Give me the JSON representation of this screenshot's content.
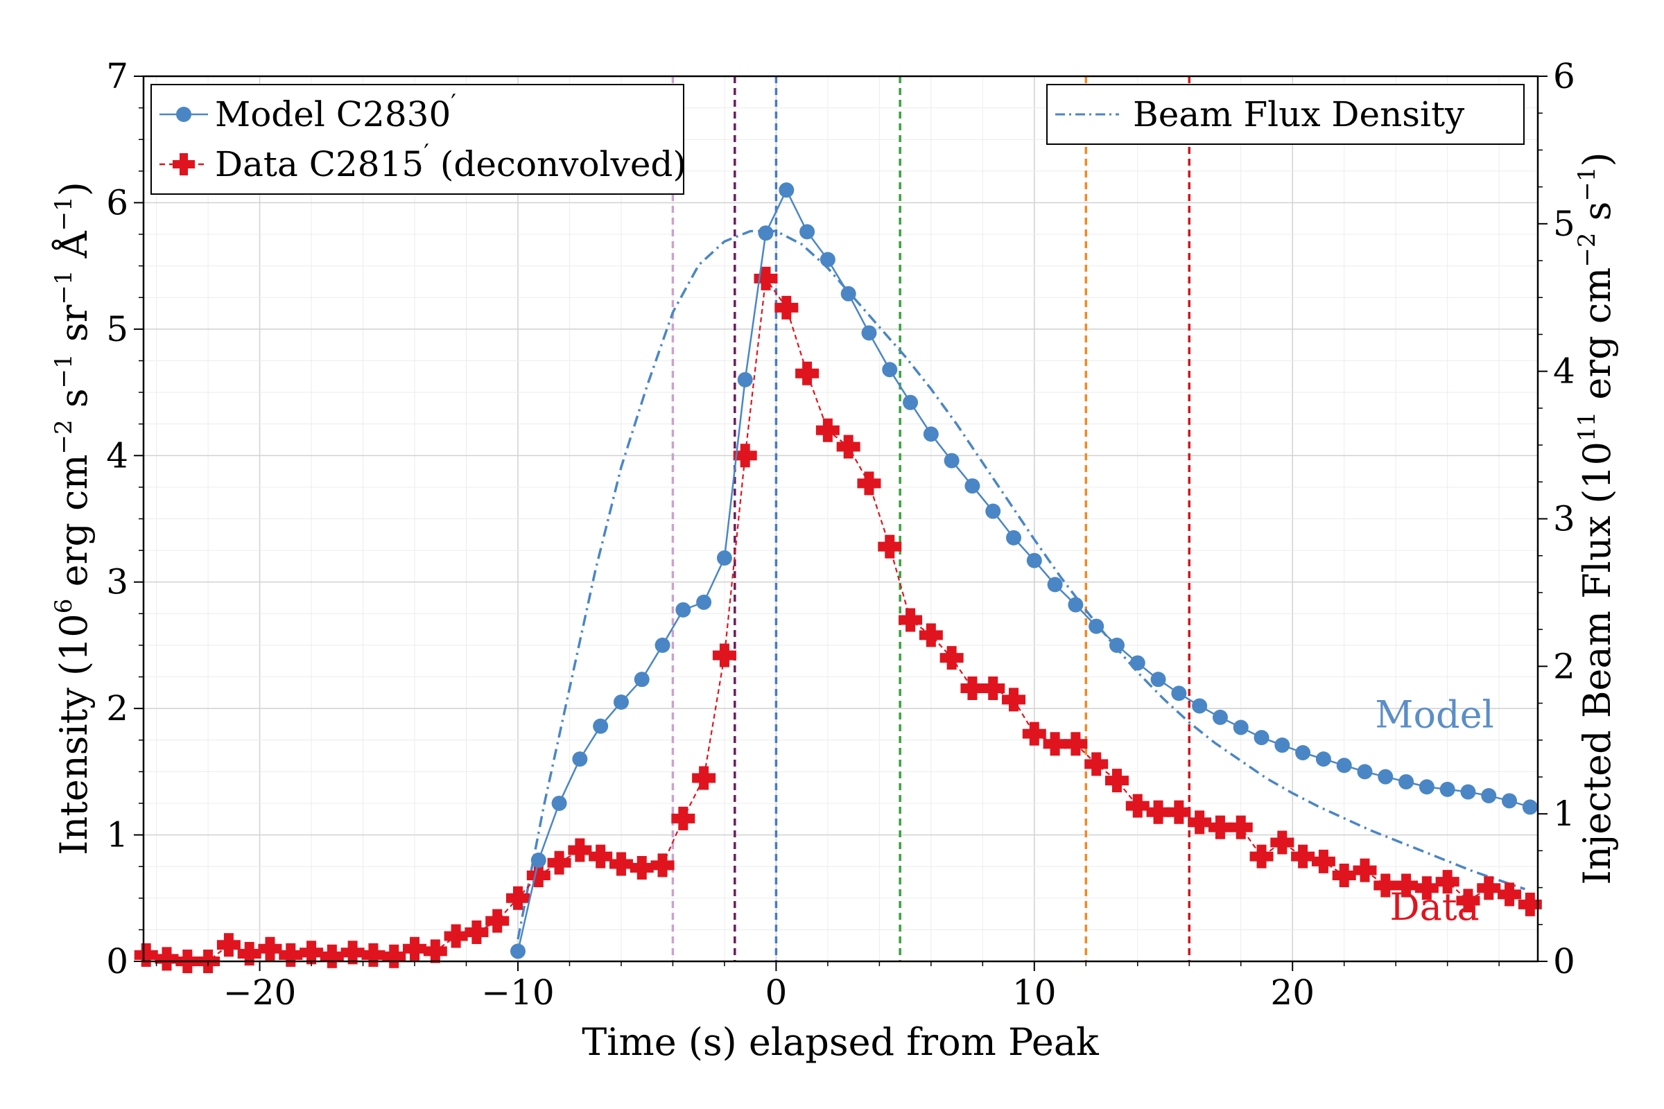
{
  "chart_data": {
    "type": "line",
    "xlabel": "Time (s) elapsed from Peak",
    "ylabel_left": {
      "pre": "Intensity (10",
      "exp": "6",
      "mid1": " erg cm",
      "exp2": "−2",
      "mid2": " s",
      "exp3": "−1",
      "mid3": " sr",
      "exp4": "−1",
      "mid4": " Å",
      "exp5": "−1",
      "post": ")"
    },
    "ylabel_right": {
      "pre": "Injected Beam Flux (10",
      "exp": "11",
      "mid1": " erg cm",
      "exp2": "−2",
      "mid2": " s",
      "exp3": "−1",
      "post": ")"
    },
    "xlim": [
      -24.5,
      29.5
    ],
    "ylim_left": [
      0,
      7
    ],
    "ylim_right": [
      0,
      6
    ],
    "x_ticks": [
      -20,
      -10,
      0,
      10,
      20
    ],
    "x_tick_labels": [
      "−20",
      "−10",
      "0",
      "10",
      "20"
    ],
    "y_left_ticks": [
      0,
      1,
      2,
      3,
      4,
      5,
      6,
      7
    ],
    "y_left_tick_labels": [
      "0",
      "1",
      "2",
      "3",
      "4",
      "5",
      "6",
      "7"
    ],
    "y_right_ticks": [
      0,
      1,
      2,
      3,
      4,
      5,
      6
    ],
    "y_right_tick_labels": [
      "0",
      "1",
      "2",
      "3",
      "4",
      "5",
      "6"
    ],
    "grid": true,
    "legend_left": [
      {
        "label": "Model C2830",
        "prime": "′",
        "color": "#4a86c5",
        "marker": "circle",
        "line": "solid"
      },
      {
        "label": "Data C2815",
        "prime": "′",
        "suffix": " (deconvolved)",
        "color": "#e0141e",
        "marker": "plus",
        "line": "dashed"
      }
    ],
    "legend_right": [
      {
        "label": "Beam Flux Density",
        "color": "#4a86c5",
        "line": "dashdot"
      }
    ],
    "annotations": [
      {
        "text": "Model",
        "color": "#5b8ec8",
        "x": 25.5,
        "y": 1.85
      },
      {
        "text": "Data",
        "color": "#e0141e",
        "x": 25.5,
        "y": 0.33
      }
    ],
    "vlines": [
      {
        "x": -4.0,
        "color": "#c9a3cb"
      },
      {
        "x": -1.6,
        "color": "#6b1e5e"
      },
      {
        "x": 0.0,
        "color": "#4a7ac0"
      },
      {
        "x": 4.8,
        "color": "#3aa23f"
      },
      {
        "x": 12.0,
        "color": "#f08a24"
      },
      {
        "x": 16.0,
        "color": "#d4141c"
      }
    ],
    "series": [
      {
        "name": "Model C2830′",
        "axis": "left",
        "color": "#4a86c5",
        "x": [
          -10.0,
          -9.2,
          -8.4,
          -7.6,
          -6.8,
          -6.0,
          -5.2,
          -4.4,
          -3.6,
          -2.8,
          -2.0,
          -1.2,
          -0.4,
          0.4,
          1.2,
          2.0,
          2.8,
          3.6,
          4.4,
          5.2,
          6.0,
          6.8,
          7.6,
          8.4,
          9.2,
          10.0,
          10.8,
          11.6,
          12.4,
          13.2,
          14.0,
          14.8,
          15.6,
          16.4,
          17.2,
          18.0,
          18.8,
          19.6,
          20.4,
          21.2,
          22.0,
          22.8,
          23.6,
          24.4,
          25.2,
          26.0,
          26.8,
          27.6,
          28.4,
          29.2
        ],
        "y": [
          0.08,
          0.8,
          1.25,
          1.6,
          1.86,
          2.05,
          2.23,
          2.5,
          2.78,
          2.84,
          3.19,
          4.6,
          5.76,
          6.1,
          5.77,
          5.55,
          5.28,
          4.97,
          4.68,
          4.42,
          4.17,
          3.96,
          3.76,
          3.56,
          3.35,
          3.17,
          2.98,
          2.82,
          2.65,
          2.5,
          2.36,
          2.23,
          2.12,
          2.02,
          1.93,
          1.85,
          1.77,
          1.71,
          1.65,
          1.6,
          1.55,
          1.5,
          1.46,
          1.42,
          1.38,
          1.36,
          1.34,
          1.31,
          1.27,
          1.22
        ]
      },
      {
        "name": "Data C2815′ (deconvolved)",
        "axis": "left",
        "color": "#e0141e",
        "x": [
          -24.4,
          -23.6,
          -22.8,
          -22.0,
          -21.2,
          -20.4,
          -19.6,
          -18.8,
          -18.0,
          -17.2,
          -16.4,
          -15.6,
          -14.8,
          -14.0,
          -13.2,
          -12.4,
          -11.6,
          -10.8,
          -10.0,
          -9.2,
          -8.4,
          -7.6,
          -6.8,
          -6.0,
          -5.2,
          -4.4,
          -3.6,
          -2.8,
          -2.0,
          -1.2,
          -0.4,
          0.4,
          1.2,
          2.0,
          2.8,
          3.6,
          4.4,
          5.2,
          6.0,
          6.8,
          7.6,
          8.4,
          9.2,
          10.0,
          10.8,
          11.6,
          12.4,
          13.2,
          14.0,
          14.8,
          15.6,
          16.4,
          17.2,
          18.0,
          18.8,
          19.6,
          20.4,
          21.2,
          22.0,
          22.8,
          23.6,
          24.4,
          25.2,
          26.0,
          26.8,
          27.6,
          28.4,
          29.2
        ],
        "y": [
          0.05,
          0.02,
          0.0,
          0.0,
          0.13,
          0.06,
          0.1,
          0.05,
          0.07,
          0.04,
          0.07,
          0.05,
          0.04,
          0.1,
          0.08,
          0.2,
          0.23,
          0.32,
          0.5,
          0.68,
          0.78,
          0.88,
          0.83,
          0.77,
          0.74,
          0.76,
          1.13,
          1.45,
          2.42,
          4.0,
          5.4,
          5.17,
          4.65,
          4.2,
          4.07,
          3.78,
          3.28,
          2.7,
          2.58,
          2.4,
          2.16,
          2.16,
          2.07,
          1.8,
          1.72,
          1.72,
          1.56,
          1.43,
          1.23,
          1.18,
          1.18,
          1.1,
          1.06,
          1.06,
          0.83,
          0.94,
          0.83,
          0.79,
          0.68,
          0.72,
          0.6,
          0.6,
          0.58,
          0.63,
          0.48,
          0.58,
          0.53,
          0.45
        ]
      },
      {
        "name": "Beam Flux Density",
        "axis": "right",
        "color": "#4a86c5",
        "x": [
          -10.0,
          -9.0,
          -8.0,
          -7.0,
          -6.0,
          -5.0,
          -4.0,
          -3.0,
          -2.0,
          -1.0,
          0.0,
          1.0,
          2.0,
          3.0,
          4.0,
          5.0,
          6.0,
          7.0,
          8.0,
          9.0,
          10.0,
          11.0,
          12.0,
          13.0,
          14.0,
          15.0,
          16.0,
          17.0,
          18.0,
          19.0,
          20.0,
          21.0,
          22.0,
          23.0,
          24.0,
          25.0,
          26.0,
          27.0,
          28.0,
          29.0
        ],
        "y": [
          0.15,
          1.05,
          1.85,
          2.65,
          3.35,
          3.9,
          4.4,
          4.72,
          4.88,
          4.95,
          4.95,
          4.86,
          4.7,
          4.5,
          4.3,
          4.1,
          3.88,
          3.64,
          3.38,
          3.12,
          2.86,
          2.61,
          2.38,
          2.16,
          1.96,
          1.78,
          1.62,
          1.48,
          1.36,
          1.24,
          1.14,
          1.05,
          0.97,
          0.89,
          0.82,
          0.75,
          0.68,
          0.61,
          0.55,
          0.49
        ]
      }
    ]
  }
}
